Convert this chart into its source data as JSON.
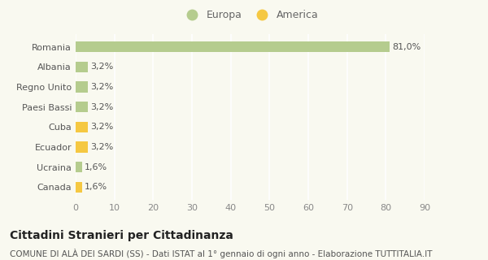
{
  "categories": [
    "Romania",
    "Albania",
    "Regno Unito",
    "Paesi Bassi",
    "Cuba",
    "Ecuador",
    "Ucraina",
    "Canada"
  ],
  "values": [
    81.0,
    3.2,
    3.2,
    3.2,
    3.2,
    3.2,
    1.6,
    1.6
  ],
  "labels": [
    "81,0%",
    "3,2%",
    "3,2%",
    "3,2%",
    "3,2%",
    "3,2%",
    "1,6%",
    "1,6%"
  ],
  "colors": [
    "#b5cc8e",
    "#b5cc8e",
    "#b5cc8e",
    "#b5cc8e",
    "#f5c842",
    "#f5c842",
    "#b5cc8e",
    "#f5c842"
  ],
  "legend_labels": [
    "Europa",
    "America"
  ],
  "legend_colors": [
    "#b5cc8e",
    "#f5c842"
  ],
  "xlim": [
    0,
    90
  ],
  "xticks": [
    0,
    10,
    20,
    30,
    40,
    50,
    60,
    70,
    80,
    90
  ],
  "title": "Cittadini Stranieri per Cittadinanza",
  "subtitle": "COMUNE DI ALÀ DEI SARDI (SS) - Dati ISTAT al 1° gennaio di ogni anno - Elaborazione TUTTITALIA.IT",
  "bg_color": "#f9f9f0",
  "grid_color": "#ffffff",
  "bar_height": 0.55,
  "title_fontsize": 10,
  "subtitle_fontsize": 7.5,
  "tick_fontsize": 8,
  "label_fontsize": 8
}
